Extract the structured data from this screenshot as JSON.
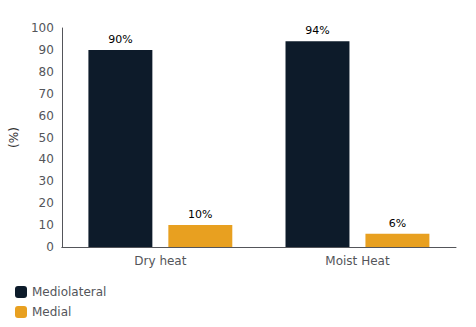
{
  "chart_data": {
    "type": "bar",
    "categories": [
      "Dry heat",
      "Moist Heat"
    ],
    "series": [
      {
        "name": "Mediolateral",
        "color": "#0d1b2a",
        "values": [
          90,
          94
        ],
        "value_labels": [
          "90%",
          "94%"
        ]
      },
      {
        "name": "Medial",
        "color": "#E8A020",
        "values": [
          10,
          6
        ],
        "value_labels": [
          "10%",
          "6%"
        ]
      }
    ],
    "ylabel": "(%)",
    "ylim": [
      0,
      100
    ],
    "yticks": [
      0,
      10,
      20,
      30,
      40,
      50,
      60,
      70,
      80,
      90,
      100
    ],
    "grid": false,
    "legend": "lower left",
    "data_labels": true
  }
}
